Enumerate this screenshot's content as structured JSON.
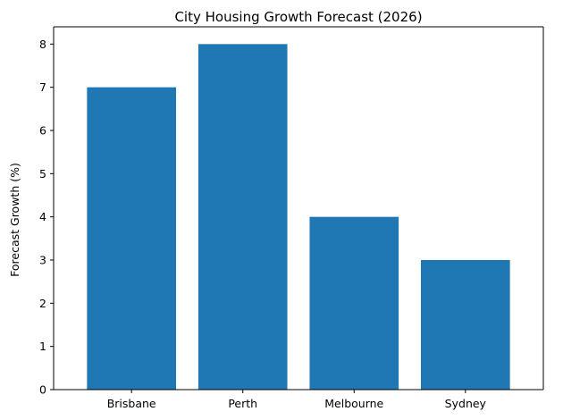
{
  "chart_data": {
    "type": "bar",
    "title": "City Housing Growth Forecast (2026)",
    "xlabel": "",
    "ylabel": "Forecast Growth (%)",
    "categories": [
      "Brisbane",
      "Perth",
      "Melbourne",
      "Sydney"
    ],
    "values": [
      7,
      8,
      4,
      3
    ],
    "ylim": [
      0,
      8.4
    ],
    "yticks": [
      0,
      1,
      2,
      3,
      4,
      5,
      6,
      7,
      8
    ],
    "bar_color": "#1f77b4",
    "grid": false,
    "legend": "none"
  }
}
